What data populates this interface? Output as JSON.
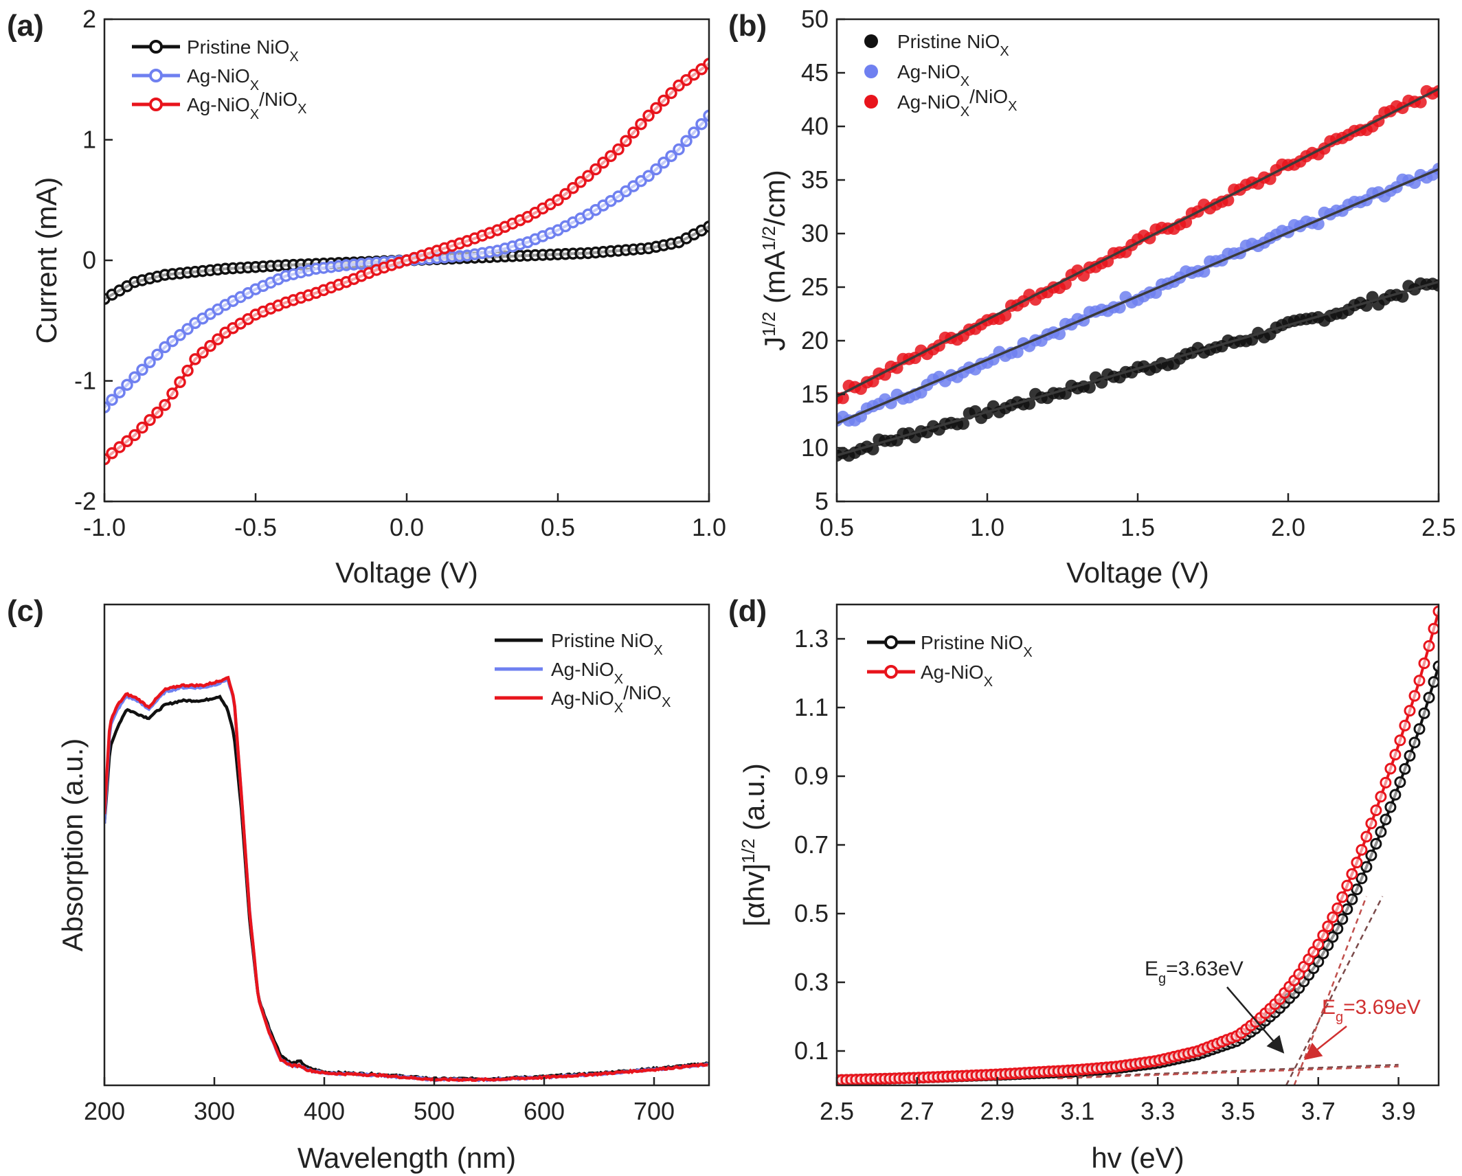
{
  "colors": {
    "pristine": "#111111",
    "ag": "#6f80f0",
    "agni": "#e8141c",
    "fit_line": "#3a3a3a",
    "dashed_black": "#7a4a4a",
    "dashed_red": "#c0504d",
    "annot_black": "#222222",
    "annot_red": "#d03030"
  },
  "chart_data": [
    {
      "id": "a",
      "panel_label": "(a)",
      "type": "line",
      "xlabel": "Voltage (V)",
      "ylabel": "Current (mA)",
      "xlim": [
        -1.0,
        1.0
      ],
      "ylim": [
        -2,
        2
      ],
      "xticks": [
        -1.0,
        -0.5,
        0.0,
        0.5,
        1.0
      ],
      "xtick_labels": [
        "-1.0",
        "-0.5",
        "0.0",
        "0.5",
        "1.0"
      ],
      "yticks": [
        -2,
        -1,
        0,
        1,
        2
      ],
      "ytick_labels": [
        "-2",
        "-1",
        "0",
        "1",
        "2"
      ],
      "legend": {
        "position": "top-left",
        "items": [
          {
            "label": "Pristine NiO",
            "sub": "X",
            "color_key": "pristine"
          },
          {
            "label": "Ag-NiO",
            "sub": "X",
            "color_key": "ag"
          },
          {
            "label": "Ag-NiO",
            "sub": "X",
            "label2": "/NiO",
            "sub2": "X",
            "color_key": "agni"
          }
        ]
      },
      "series": [
        {
          "name": "Pristine NiO_X",
          "color_key": "pristine",
          "x": [
            -1.0,
            -0.9,
            -0.8,
            -0.6,
            -0.4,
            -0.2,
            0.0,
            0.2,
            0.4,
            0.6,
            0.8,
            0.9,
            1.0
          ],
          "y": [
            -0.32,
            -0.18,
            -0.12,
            -0.07,
            -0.04,
            -0.02,
            0.0,
            0.02,
            0.04,
            0.06,
            0.1,
            0.15,
            0.28
          ]
        },
        {
          "name": "Ag-NiO_X",
          "color_key": "ag",
          "x": [
            -1.0,
            -0.9,
            -0.8,
            -0.7,
            -0.6,
            -0.5,
            -0.4,
            -0.3,
            -0.2,
            -0.1,
            0.0,
            0.1,
            0.2,
            0.3,
            0.4,
            0.5,
            0.6,
            0.7,
            0.8,
            0.9,
            1.0
          ],
          "y": [
            -1.22,
            -0.97,
            -0.72,
            -0.52,
            -0.37,
            -0.24,
            -0.13,
            -0.07,
            -0.04,
            -0.02,
            0.0,
            0.02,
            0.04,
            0.08,
            0.15,
            0.25,
            0.38,
            0.53,
            0.7,
            0.92,
            1.2
          ]
        },
        {
          "name": "Ag-NiO_X/NiO_X",
          "color_key": "agni",
          "x": [
            -1.0,
            -0.9,
            -0.8,
            -0.7,
            -0.6,
            -0.5,
            -0.4,
            -0.3,
            -0.2,
            -0.1,
            0.0,
            0.1,
            0.2,
            0.3,
            0.4,
            0.5,
            0.6,
            0.7,
            0.8,
            0.9,
            1.0
          ],
          "y": [
            -1.65,
            -1.45,
            -1.2,
            -0.82,
            -0.6,
            -0.45,
            -0.35,
            -0.27,
            -0.18,
            -0.08,
            0.0,
            0.08,
            0.16,
            0.25,
            0.36,
            0.5,
            0.7,
            0.92,
            1.2,
            1.45,
            1.63
          ]
        }
      ]
    },
    {
      "id": "b",
      "panel_label": "(b)",
      "type": "scatter",
      "xlabel": "Voltage (V)",
      "ylabel": "J^1/2 (mA^1/2/cm)",
      "xlim": [
        0.5,
        2.5
      ],
      "ylim": [
        5,
        50
      ],
      "xticks": [
        0.5,
        1.0,
        1.5,
        2.0,
        2.5
      ],
      "xtick_labels": [
        "0.5",
        "1.0",
        "1.5",
        "2.0",
        "2.5"
      ],
      "yticks": [
        5,
        10,
        15,
        20,
        25,
        30,
        35,
        40,
        45,
        50
      ],
      "ytick_labels": [
        "5",
        "10",
        "15",
        "20",
        "25",
        "30",
        "35",
        "40",
        "45",
        "50"
      ],
      "legend": {
        "position": "top-left",
        "items": [
          {
            "label": "Pristine NiO",
            "sub": "X",
            "color_key": "pristine"
          },
          {
            "label": "Ag-NiO",
            "sub": "X",
            "color_key": "ag"
          },
          {
            "label": "Ag-NiO",
            "sub": "X",
            "label2": "/NiO",
            "sub2": "X",
            "color_key": "agni"
          }
        ]
      },
      "series": [
        {
          "name": "Pristine NiO_X",
          "color_key": "pristine",
          "x": [
            0.5,
            1.0,
            1.5,
            2.0,
            2.5
          ],
          "y": [
            9.3,
            13.3,
            17.3,
            21.3,
            25.5
          ],
          "fit": {
            "x": [
              0.5,
              2.5
            ],
            "y": [
              9.3,
              25.5
            ]
          }
        },
        {
          "name": "Ag-NiO_X",
          "color_key": "ag",
          "x": [
            0.5,
            1.0,
            1.5,
            2.0,
            2.5
          ],
          "y": [
            12.3,
            18.2,
            24.2,
            30.1,
            36.0
          ],
          "fit": {
            "x": [
              0.5,
              2.5
            ],
            "y": [
              12.3,
              36.0
            ]
          }
        },
        {
          "name": "Ag-NiO_X/NiO_X",
          "color_key": "agni",
          "x": [
            0.5,
            1.0,
            1.5,
            2.0,
            2.5
          ],
          "y": [
            14.8,
            21.9,
            29.1,
            36.3,
            43.5
          ],
          "fit": {
            "x": [
              0.5,
              2.5
            ],
            "y": [
              14.8,
              43.5
            ]
          }
        }
      ]
    },
    {
      "id": "c",
      "panel_label": "(c)",
      "type": "line",
      "xlabel": "Wavelength (nm)",
      "ylabel": "Absorption (a.u.)",
      "xlim": [
        200,
        750
      ],
      "ylim": [
        0,
        1.1
      ],
      "xticks": [
        200,
        300,
        400,
        500,
        600,
        700
      ],
      "xtick_labels": [
        "200",
        "300",
        "400",
        "500",
        "600",
        "700"
      ],
      "legend": {
        "position": "top-right",
        "items": [
          {
            "label": "Pristine NiO",
            "sub": "X",
            "color_key": "pristine"
          },
          {
            "label": "Ag-NiO",
            "sub": "X",
            "color_key": "ag"
          },
          {
            "label": "Ag-NiO",
            "sub": "X",
            "label2": "/NiO",
            "sub2": "X",
            "color_key": "agni"
          }
        ]
      },
      "series": [
        {
          "name": "Pristine NiO_X",
          "color_key": "pristine",
          "x": [
            200,
            205,
            212,
            220,
            230,
            240,
            255,
            270,
            290,
            305,
            312,
            318,
            325,
            332,
            340,
            350,
            360,
            370,
            378,
            385,
            400,
            450,
            500,
            550,
            600,
            650,
            700,
            750
          ],
          "y": [
            0.6,
            0.77,
            0.82,
            0.86,
            0.85,
            0.84,
            0.87,
            0.88,
            0.88,
            0.89,
            0.86,
            0.8,
            0.62,
            0.38,
            0.2,
            0.13,
            0.07,
            0.05,
            0.055,
            0.04,
            0.03,
            0.025,
            0.015,
            0.015,
            0.02,
            0.028,
            0.038,
            0.05
          ]
        },
        {
          "name": "Ag-NiO_X",
          "color_key": "ag",
          "x": [
            200,
            205,
            212,
            220,
            230,
            240,
            255,
            270,
            290,
            305,
            312,
            318,
            325,
            332,
            340,
            350,
            360,
            370,
            378,
            385,
            400,
            450,
            500,
            550,
            600,
            650,
            700,
            750
          ],
          "y": [
            0.6,
            0.82,
            0.86,
            0.89,
            0.88,
            0.86,
            0.9,
            0.91,
            0.91,
            0.92,
            0.93,
            0.88,
            0.65,
            0.4,
            0.2,
            0.12,
            0.06,
            0.045,
            0.045,
            0.035,
            0.028,
            0.023,
            0.013,
            0.013,
            0.018,
            0.026,
            0.036,
            0.048
          ]
        },
        {
          "name": "Ag-NiO_X/NiO_X",
          "color_key": "agni",
          "x": [
            200,
            205,
            212,
            220,
            230,
            240,
            255,
            270,
            290,
            305,
            312,
            318,
            325,
            332,
            340,
            350,
            360,
            370,
            378,
            385,
            400,
            450,
            500,
            550,
            600,
            650,
            700,
            750
          ],
          "y": [
            0.62,
            0.83,
            0.87,
            0.895,
            0.885,
            0.865,
            0.905,
            0.915,
            0.915,
            0.925,
            0.935,
            0.885,
            0.65,
            0.4,
            0.2,
            0.12,
            0.06,
            0.045,
            0.045,
            0.035,
            0.028,
            0.023,
            0.013,
            0.013,
            0.018,
            0.026,
            0.036,
            0.048
          ]
        }
      ]
    },
    {
      "id": "d",
      "panel_label": "(d)",
      "type": "line",
      "xlabel": "hv (eV)",
      "ylabel": "[αhv]^1/2 (a.u.)",
      "xlim": [
        2.5,
        4.0
      ],
      "ylim": [
        0,
        1.4
      ],
      "xticks": [
        2.5,
        2.7,
        2.9,
        3.1,
        3.3,
        3.5,
        3.7,
        3.9
      ],
      "xtick_labels": [
        "2.5",
        "2.7",
        "2.9",
        "3.1",
        "3.3",
        "3.5",
        "3.7",
        "3.9"
      ],
      "yticks": [
        0.1,
        0.3,
        0.5,
        0.7,
        0.9,
        1.1,
        1.3
      ],
      "ytick_labels": [
        "0.1",
        "0.3",
        "0.5",
        "0.7",
        "0.9",
        "1.1",
        "1.3"
      ],
      "legend": {
        "position": "top-left",
        "items": [
          {
            "label": "Pristine NiO",
            "sub": "X",
            "color_key": "pristine"
          },
          {
            "label": "Ag-NiO",
            "sub": "X",
            "color_key": "agni"
          }
        ]
      },
      "series": [
        {
          "name": "Pristine NiO_X",
          "color_key": "pristine",
          "x": [
            2.5,
            2.7,
            2.9,
            3.1,
            3.2,
            3.3,
            3.4,
            3.5,
            3.55,
            3.6,
            3.65,
            3.7,
            3.75,
            3.8,
            3.85,
            3.9,
            3.95,
            4.0
          ],
          "y": [
            0.015,
            0.022,
            0.03,
            0.04,
            0.05,
            0.065,
            0.09,
            0.13,
            0.17,
            0.22,
            0.28,
            0.36,
            0.46,
            0.58,
            0.72,
            0.87,
            1.03,
            1.22
          ]
        },
        {
          "name": "Ag-NiO_X",
          "color_key": "agni",
          "x": [
            2.5,
            2.7,
            2.9,
            3.1,
            3.2,
            3.3,
            3.4,
            3.5,
            3.55,
            3.6,
            3.65,
            3.7,
            3.75,
            3.8,
            3.85,
            3.9,
            3.95,
            4.0
          ],
          "y": [
            0.015,
            0.022,
            0.032,
            0.045,
            0.055,
            0.072,
            0.1,
            0.145,
            0.19,
            0.245,
            0.32,
            0.41,
            0.52,
            0.66,
            0.82,
            0.99,
            1.17,
            1.38
          ]
        }
      ],
      "annotations": [
        {
          "label": "E",
          "sub": "g",
          "rest": "=3.63eV",
          "color_key": "annot_black"
        },
        {
          "label": "E",
          "sub": "g",
          "rest": "=3.69eV",
          "color_key": "annot_red"
        }
      ]
    }
  ]
}
